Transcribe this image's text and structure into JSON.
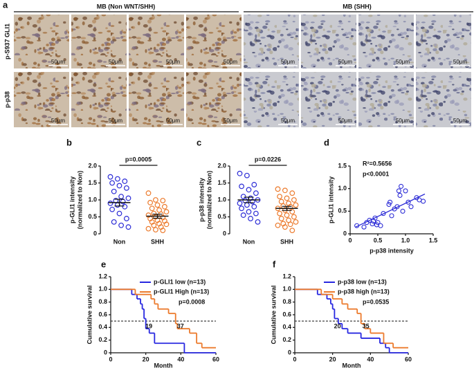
{
  "panel_a": {
    "label": "a",
    "headers": [
      "MB (Non WNT/SHH)",
      "MB (SHH)"
    ],
    "rows": [
      "p-S937 GLI1",
      "p-p38"
    ],
    "scale_label": "50μm"
  },
  "chart_data": [
    {
      "type": "strip",
      "label": "b",
      "ylabel": [
        "p-GLI1 intensity",
        "(normalized to Non)"
      ],
      "categories": [
        "Non",
        "SHH"
      ],
      "colors": [
        "#2b2bd6",
        "#ec7a2c"
      ],
      "values": [
        [
          1.68,
          1.62,
          1.55,
          1.5,
          1.42,
          1.35,
          1.25,
          1.1,
          1.05,
          0.98,
          0.95,
          0.9,
          0.85,
          0.8,
          0.72,
          0.6,
          0.45,
          0.35,
          0.25,
          0.2
        ],
        [
          1.2,
          1.0,
          0.98,
          0.92,
          0.85,
          0.8,
          0.75,
          0.7,
          0.65,
          0.6,
          0.58,
          0.55,
          0.5,
          0.48,
          0.45,
          0.4,
          0.38,
          0.35,
          0.3,
          0.28,
          0.25,
          0.2,
          0.15,
          0.12,
          0.1
        ]
      ],
      "means": [
        0.92,
        0.52
      ],
      "sems": [
        0.1,
        0.06
      ],
      "pvalue": "p=0.0005",
      "ylim": [
        0,
        2
      ],
      "yticks": [
        0,
        0.5,
        {
          "value": 1,
          "label": "1.0"
        },
        1.5,
        {
          "value": 2,
          "label": "2.0"
        }
      ]
    },
    {
      "type": "strip",
      "label": "c",
      "ylabel": [
        "p-p38 intensity",
        "(normalized to Non)"
      ],
      "categories": [
        "Non",
        "SHH"
      ],
      "colors": [
        "#2b2bd6",
        "#ec7a2c"
      ],
      "values": [
        [
          1.78,
          1.72,
          1.45,
          1.4,
          1.3,
          1.2,
          1.1,
          1.05,
          1.0,
          0.98,
          0.95,
          0.9,
          0.85,
          0.8,
          0.75,
          0.65,
          0.6,
          0.55,
          0.45,
          0.35
        ],
        [
          1.32,
          1.28,
          1.2,
          1.1,
          1.05,
          1.0,
          0.95,
          0.9,
          0.85,
          0.82,
          0.8,
          0.75,
          0.7,
          0.65,
          0.6,
          0.55,
          0.5,
          0.45,
          0.4,
          0.35,
          0.3,
          0.28,
          0.25,
          0.2,
          0.1
        ]
      ],
      "means": [
        1.0,
        0.75
      ],
      "sems": [
        0.08,
        0.06
      ],
      "pvalue": "p=0.0226",
      "ylim": [
        0,
        2
      ],
      "yticks": [
        0,
        0.5,
        {
          "value": 1,
          "label": "1.0"
        },
        1.5,
        {
          "value": 2,
          "label": "2.0"
        }
      ]
    },
    {
      "type": "scatter",
      "label": "d",
      "xlabel": "p-p38 intensity",
      "ylabel": "p-GLI1 intensity",
      "color": "#2b2bd6",
      "annotations": [
        "R²=0.5656",
        "p<0.0001"
      ],
      "x": [
        0.12,
        0.25,
        0.3,
        0.35,
        0.4,
        0.42,
        0.45,
        0.48,
        0.5,
        0.55,
        0.6,
        0.7,
        0.72,
        0.75,
        0.8,
        0.85,
        0.88,
        0.9,
        0.92,
        0.95,
        1.0,
        1.05,
        1.1,
        1.2,
        1.25,
        1.32
      ],
      "y": [
        0.18,
        0.15,
        0.25,
        0.3,
        0.22,
        0.28,
        0.35,
        0.2,
        0.25,
        0.18,
        0.45,
        0.65,
        0.7,
        0.4,
        0.55,
        0.6,
        0.95,
        0.85,
        1.05,
        0.5,
        0.95,
        0.7,
        0.6,
        0.8,
        0.75,
        0.72
      ],
      "fit": {
        "x": [
          0.1,
          1.35
        ],
        "y": [
          0.15,
          0.88
        ]
      },
      "xlim": [
        0,
        1.5
      ],
      "ylim": [
        0,
        1.5
      ],
      "xticks": [
        0,
        0.5,
        {
          "value": 1,
          "label": "1.0"
        },
        1.5
      ],
      "yticks": [
        0,
        0.5,
        {
          "value": 1,
          "label": "1.0"
        },
        1.5
      ]
    },
    {
      "type": "km",
      "label": "e",
      "xlabel": "Month",
      "ylabel": "Cumulative survival",
      "pvalue": "p=0.0008",
      "reference": 0.5,
      "medians": [
        19,
        37
      ],
      "series": [
        {
          "name": "p-GLI1 low (n=13)",
          "color": "#2727e0",
          "x": [
            0,
            12,
            15,
            17,
            18,
            19,
            20,
            22,
            25,
            42
          ],
          "values": [
            1,
            0.92,
            0.85,
            0.77,
            0.69,
            0.54,
            0.38,
            0.31,
            0.15,
            0
          ]
        },
        {
          "name": "p-GLI1 High (n=13)",
          "color": "#ec7a2c",
          "x": [
            0,
            14,
            23,
            25,
            27,
            33,
            37,
            38,
            45,
            49,
            52
          ],
          "values": [
            1,
            0.92,
            0.85,
            0.77,
            0.69,
            0.62,
            0.46,
            0.38,
            0.31,
            0.15,
            0.08
          ]
        }
      ],
      "xlim": [
        0,
        60
      ],
      "ylim": [
        0,
        1.2
      ],
      "xticks": [
        0,
        20,
        40,
        60
      ],
      "yticks": [
        0,
        0.2,
        0.4,
        0.6,
        0.8,
        {
          "value": 1,
          "label": "1.0"
        },
        1.2
      ]
    },
    {
      "type": "km",
      "label": "f",
      "xlabel": "Month",
      "ylabel": "Cumulative survival",
      "pvalue": "p=0.0535",
      "reference": 0.5,
      "medians": [
        20,
        35
      ],
      "series": [
        {
          "name": "p-p38 low (n=13)",
          "color": "#2727e0",
          "x": [
            0,
            12,
            17,
            19,
            20,
            21,
            23,
            25,
            28,
            35,
            45,
            48,
            50
          ],
          "values": [
            1,
            0.92,
            0.85,
            0.77,
            0.69,
            0.54,
            0.46,
            0.38,
            0.31,
            0.23,
            0.15,
            0.08,
            0
          ]
        },
        {
          "name": "p-p38 high (n=13)",
          "color": "#ec7a2c",
          "x": [
            0,
            14,
            20,
            25,
            28,
            33,
            35,
            37,
            40,
            47,
            52
          ],
          "values": [
            1,
            0.92,
            0.85,
            0.77,
            0.69,
            0.62,
            0.46,
            0.38,
            0.31,
            0.15,
            0.08
          ]
        }
      ],
      "xlim": [
        0,
        60
      ],
      "ylim": [
        0,
        1.2
      ],
      "xticks": [
        0,
        20,
        40,
        60
      ],
      "yticks": [
        0,
        0.2,
        0.4,
        0.6,
        0.8,
        {
          "value": 1,
          "label": "1.0"
        },
        1.2
      ]
    }
  ]
}
